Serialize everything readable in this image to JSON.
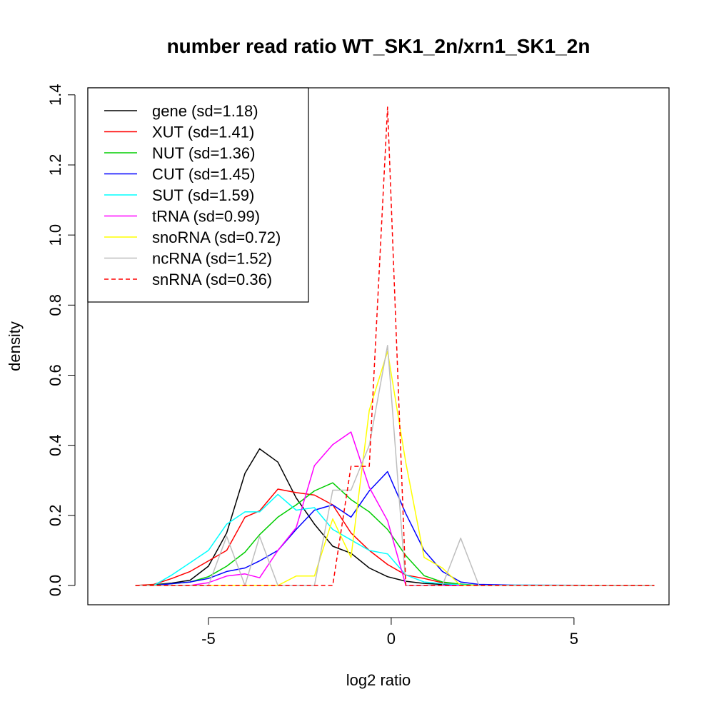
{
  "chart_data": {
    "type": "line",
    "title": "number read ratio WT_SK1_2n/xrn1_SK1_2n",
    "xlabel": "log2 ratio",
    "ylabel": "density",
    "xlim": [
      -8.3,
      7.6
    ],
    "ylim": [
      -0.055,
      1.42
    ],
    "xticks": [
      -5,
      0,
      5
    ],
    "xtick_labels": [
      "-5",
      "0",
      "5"
    ],
    "yticks": [
      0.0,
      0.2,
      0.4,
      0.6,
      0.8,
      1.0,
      1.2,
      1.4
    ],
    "ytick_labels": [
      "0.0",
      "0.2",
      "0.4",
      "0.6",
      "0.8",
      "1.0",
      "1.2",
      "1.4"
    ],
    "grid": false,
    "legend_position": "top-left",
    "series": [
      {
        "name": "gene (sd=1.18)",
        "color": "#000000",
        "dash": false,
        "points": [
          [
            -7.0,
            0.0
          ],
          [
            -6.5,
            0.002
          ],
          [
            -6.0,
            0.007
          ],
          [
            -5.5,
            0.015
          ],
          [
            -5.0,
            0.055
          ],
          [
            -4.5,
            0.15
          ],
          [
            -4.0,
            0.32
          ],
          [
            -3.6,
            0.39
          ],
          [
            -3.1,
            0.352
          ],
          [
            -2.6,
            0.25
          ],
          [
            -2.1,
            0.175
          ],
          [
            -1.6,
            0.112
          ],
          [
            -1.1,
            0.092
          ],
          [
            -0.6,
            0.05
          ],
          [
            -0.1,
            0.025
          ],
          [
            0.4,
            0.012
          ],
          [
            0.9,
            0.006
          ],
          [
            1.4,
            0.003
          ],
          [
            1.9,
            0.001
          ],
          [
            2.4,
            0.0
          ],
          [
            7.2,
            0.0
          ]
        ]
      },
      {
        "name": "XUT (sd=1.41)",
        "color": "#ff0000",
        "dash": false,
        "points": [
          [
            -7.0,
            0.0
          ],
          [
            -6.5,
            0.003
          ],
          [
            -6.0,
            0.02
          ],
          [
            -5.5,
            0.04
          ],
          [
            -5.0,
            0.07
          ],
          [
            -4.5,
            0.1
          ],
          [
            -4.0,
            0.195
          ],
          [
            -3.6,
            0.213
          ],
          [
            -3.1,
            0.275
          ],
          [
            -2.6,
            0.265
          ],
          [
            -2.1,
            0.258
          ],
          [
            -1.6,
            0.23
          ],
          [
            -1.1,
            0.15
          ],
          [
            -0.6,
            0.1
          ],
          [
            -0.1,
            0.06
          ],
          [
            0.4,
            0.03
          ],
          [
            0.9,
            0.02
          ],
          [
            1.4,
            0.008
          ],
          [
            1.9,
            0.002
          ],
          [
            2.4,
            0.0
          ],
          [
            7.2,
            0.0
          ]
        ]
      },
      {
        "name": "NUT (sd=1.36)",
        "color": "#00cd00",
        "dash": false,
        "points": [
          [
            -7.0,
            0.0
          ],
          [
            -6.5,
            0.001
          ],
          [
            -6.0,
            0.005
          ],
          [
            -5.5,
            0.01
          ],
          [
            -5.0,
            0.025
          ],
          [
            -4.5,
            0.055
          ],
          [
            -4.0,
            0.095
          ],
          [
            -3.6,
            0.145
          ],
          [
            -3.1,
            0.195
          ],
          [
            -2.6,
            0.23
          ],
          [
            -2.1,
            0.27
          ],
          [
            -1.6,
            0.293
          ],
          [
            -1.1,
            0.245
          ],
          [
            -0.6,
            0.21
          ],
          [
            -0.1,
            0.16
          ],
          [
            0.4,
            0.085
          ],
          [
            0.9,
            0.028
          ],
          [
            1.4,
            0.01
          ],
          [
            1.9,
            0.004
          ],
          [
            2.4,
            0.0
          ],
          [
            7.2,
            0.0
          ]
        ]
      },
      {
        "name": "CUT (sd=1.45)",
        "color": "#0000ff",
        "dash": false,
        "points": [
          [
            -7.0,
            0.0
          ],
          [
            -6.5,
            0.0
          ],
          [
            -6.0,
            0.005
          ],
          [
            -5.5,
            0.01
          ],
          [
            -5.0,
            0.02
          ],
          [
            -4.5,
            0.04
          ],
          [
            -4.0,
            0.05
          ],
          [
            -3.6,
            0.07
          ],
          [
            -3.1,
            0.1
          ],
          [
            -2.6,
            0.16
          ],
          [
            -2.1,
            0.215
          ],
          [
            -1.6,
            0.23
          ],
          [
            -1.1,
            0.195
          ],
          [
            -0.6,
            0.27
          ],
          [
            -0.1,
            0.325
          ],
          [
            0.4,
            0.205
          ],
          [
            0.9,
            0.1
          ],
          [
            1.4,
            0.04
          ],
          [
            1.9,
            0.01
          ],
          [
            2.4,
            0.003
          ],
          [
            3.4,
            0.001
          ],
          [
            7.2,
            0.0
          ]
        ]
      },
      {
        "name": "SUT (sd=1.59)",
        "color": "#00ffff",
        "dash": false,
        "points": [
          [
            -7.0,
            0.0
          ],
          [
            -6.5,
            0.0
          ],
          [
            -6.0,
            0.03
          ],
          [
            -5.5,
            0.065
          ],
          [
            -5.0,
            0.1
          ],
          [
            -4.5,
            0.175
          ],
          [
            -4.0,
            0.21
          ],
          [
            -3.6,
            0.21
          ],
          [
            -3.1,
            0.26
          ],
          [
            -2.6,
            0.215
          ],
          [
            -2.1,
            0.222
          ],
          [
            -1.6,
            0.16
          ],
          [
            -1.1,
            0.13
          ],
          [
            -0.6,
            0.1
          ],
          [
            -0.1,
            0.09
          ],
          [
            0.4,
            0.03
          ],
          [
            0.9,
            0.01
          ],
          [
            1.4,
            0.005
          ],
          [
            1.9,
            0.002
          ],
          [
            2.4,
            0.0
          ],
          [
            3.4,
            0.001
          ],
          [
            7.2,
            0.0
          ]
        ]
      },
      {
        "name": "tRNA (sd=0.99)",
        "color": "#ff00ff",
        "dash": false,
        "points": [
          [
            -7.0,
            0.0
          ],
          [
            -6.5,
            0.0
          ],
          [
            -6.0,
            0.0
          ],
          [
            -5.5,
            0.0
          ],
          [
            -5.0,
            0.008
          ],
          [
            -4.5,
            0.027
          ],
          [
            -4.0,
            0.033
          ],
          [
            -3.6,
            0.022
          ],
          [
            -3.1,
            0.1
          ],
          [
            -2.6,
            0.165
          ],
          [
            -2.1,
            0.342
          ],
          [
            -1.6,
            0.402
          ],
          [
            -1.1,
            0.438
          ],
          [
            -0.6,
            0.28
          ],
          [
            -0.1,
            0.185
          ],
          [
            0.4,
            0.0
          ],
          [
            7.2,
            0.0
          ]
        ]
      },
      {
        "name": "snoRNA (sd=0.72)",
        "color": "#ffff00",
        "dash": false,
        "points": [
          [
            -7.0,
            0.0
          ],
          [
            -3.1,
            0.0
          ],
          [
            -2.6,
            0.027
          ],
          [
            -2.1,
            0.027
          ],
          [
            -1.6,
            0.19
          ],
          [
            -1.1,
            0.08
          ],
          [
            -0.6,
            0.5
          ],
          [
            -0.1,
            0.668
          ],
          [
            0.4,
            0.35
          ],
          [
            0.9,
            0.08
          ],
          [
            1.4,
            0.05
          ],
          [
            1.9,
            0.0
          ],
          [
            7.2,
            0.0
          ]
        ]
      },
      {
        "name": "ncRNA (sd=1.52)",
        "color": "#bebebe",
        "dash": false,
        "points": [
          [
            -7.0,
            0.0
          ],
          [
            -5.5,
            0.0
          ],
          [
            -5.0,
            0.0
          ],
          [
            -4.5,
            0.14
          ],
          [
            -4.0,
            0.0
          ],
          [
            -3.6,
            0.14
          ],
          [
            -3.1,
            0.0
          ],
          [
            -2.6,
            0.0
          ],
          [
            -2.1,
            0.0
          ],
          [
            -1.6,
            0.272
          ],
          [
            -1.1,
            0.272
          ],
          [
            -0.6,
            0.4
          ],
          [
            -0.1,
            0.685
          ],
          [
            0.4,
            0.0
          ],
          [
            0.9,
            0.0
          ],
          [
            1.4,
            0.0
          ],
          [
            1.9,
            0.135
          ],
          [
            2.4,
            0.0
          ],
          [
            7.2,
            0.0
          ]
        ]
      },
      {
        "name": "snRNA (sd=0.36)",
        "color": "#ff0000",
        "dash": true,
        "points": [
          [
            -7.0,
            0.0
          ],
          [
            -1.6,
            0.0
          ],
          [
            -1.1,
            0.34
          ],
          [
            -0.6,
            0.34
          ],
          [
            -0.1,
            1.365
          ],
          [
            0.4,
            0.0
          ],
          [
            7.2,
            0.0
          ]
        ]
      }
    ]
  }
}
